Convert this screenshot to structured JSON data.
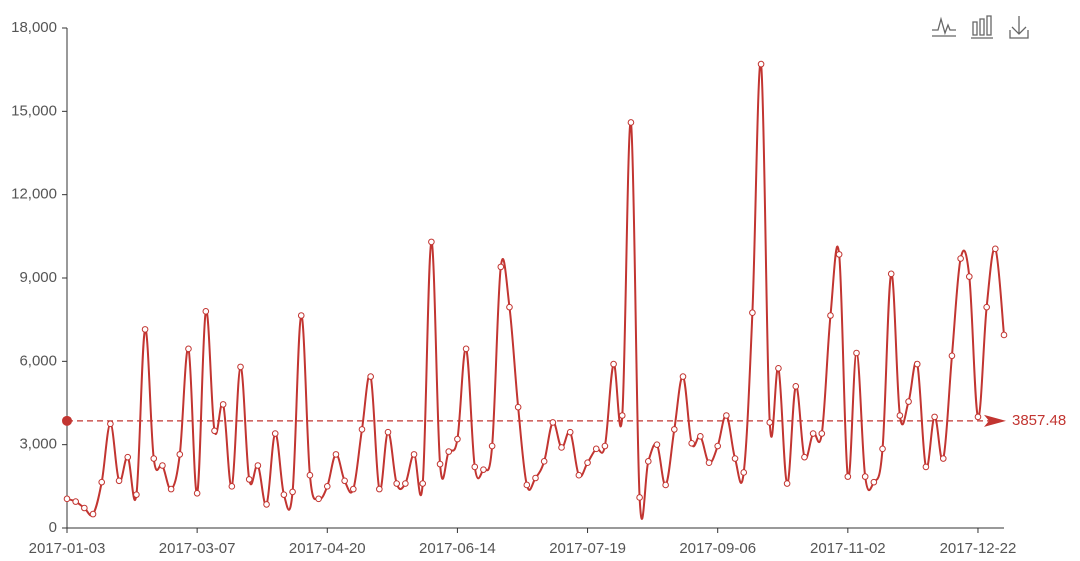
{
  "chart_data": {
    "type": "line",
    "categories": [
      "2017-01-03",
      null,
      null,
      null,
      null,
      null,
      null,
      null,
      null,
      null,
      null,
      null,
      null,
      null,
      null,
      "2017-03-07",
      null,
      null,
      null,
      null,
      null,
      null,
      null,
      null,
      null,
      null,
      null,
      null,
      null,
      null,
      "2017-04-20",
      null,
      null,
      null,
      null,
      null,
      null,
      null,
      null,
      null,
      null,
      null,
      null,
      null,
      null,
      "2017-06-14",
      null,
      null,
      null,
      null,
      null,
      null,
      null,
      null,
      null,
      null,
      null,
      null,
      null,
      null,
      "2017-07-19",
      null,
      null,
      null,
      null,
      null,
      null,
      null,
      null,
      null,
      null,
      null,
      null,
      null,
      null,
      "2017-09-06",
      null,
      null,
      null,
      null,
      null,
      null,
      null,
      null,
      null,
      null,
      null,
      null,
      null,
      null,
      "2017-11-02",
      null,
      null,
      null,
      null,
      null,
      null,
      null,
      null,
      null,
      null,
      null,
      null,
      null,
      null,
      "2017-12-22",
      null,
      null,
      null
    ],
    "values": [
      1050,
      950,
      720,
      500,
      1650,
      3750,
      1700,
      2550,
      1200,
      7150,
      2500,
      2250,
      1400,
      2650,
      6450,
      1250,
      7800,
      3500,
      4450,
      1500,
      5800,
      1750,
      2250,
      850,
      3400,
      1200,
      1300,
      7650,
      1900,
      1050,
      1500,
      2650,
      1700,
      1400,
      3550,
      5450,
      1400,
      3450,
      1600,
      1600,
      2650,
      1600,
      10300,
      2300,
      2750,
      3200,
      6450,
      2200,
      2100,
      2950,
      9400,
      7950,
      4350,
      1550,
      1800,
      2400,
      3800,
      2900,
      3450,
      1900,
      2350,
      2850,
      2950,
      5900,
      4050,
      14600,
      1100,
      2400,
      3000,
      1550,
      3550,
      5450,
      3050,
      3300,
      2350,
      2950,
      4050,
      2500,
      2000,
      7750,
      16700,
      3800,
      5750,
      1600,
      5100,
      2550,
      3400,
      3400,
      7650,
      9850,
      1850,
      6300,
      1850,
      1650,
      2850,
      9150,
      4050,
      4550,
      5900,
      2200,
      4000,
      2500,
      6200,
      9700,
      9050,
      4000,
      7950,
      10050,
      6950
    ],
    "color": "#c23531",
    "ylim": [
      0,
      18000
    ],
    "yticks": [
      0,
      {
        "value": 3000,
        "label": "3,000"
      },
      {
        "value": 6000,
        "label": "6,000"
      },
      {
        "value": 9000,
        "label": "9,000"
      },
      {
        "value": 12000,
        "label": "12,000"
      },
      {
        "value": 15000,
        "label": "15,000"
      },
      {
        "value": 18000,
        "label": "18,000"
      }
    ],
    "mark_line": {
      "value": 3857.48
    },
    "smooth": true
  }
}
